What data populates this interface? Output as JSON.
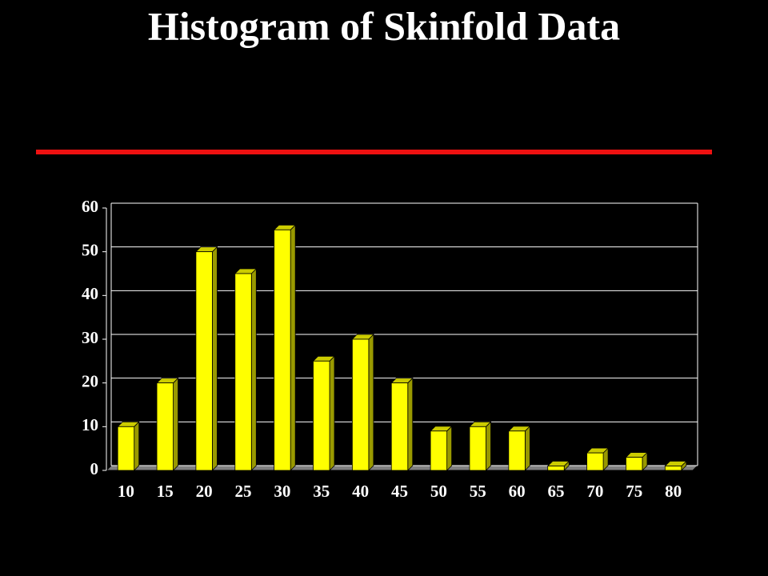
{
  "chart_data": {
    "type": "bar",
    "title": "Histogram of Skinfold Data",
    "categories": [
      "10",
      "15",
      "20",
      "25",
      "30",
      "35",
      "40",
      "45",
      "50",
      "55",
      "60",
      "65",
      "70",
      "75",
      "80"
    ],
    "values": [
      10,
      20,
      50,
      45,
      55,
      25,
      30,
      20,
      9,
      10,
      9,
      1,
      4,
      3,
      1
    ],
    "color": "#ffff00",
    "ylim": [
      0,
      60
    ],
    "yticks": [
      0,
      10,
      20,
      30,
      40,
      50,
      60
    ],
    "grid": true
  }
}
